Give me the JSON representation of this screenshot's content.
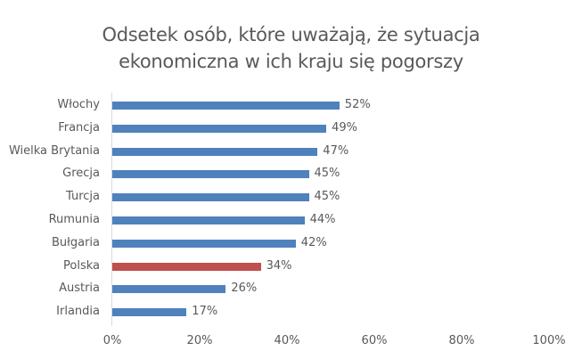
{
  "title_line1": "Odsetek osób, które uważają, że sytuacja",
  "title_line2": "ekonomiczna w ich kraju się pogorszy",
  "colors": {
    "default": "#4f81bd",
    "highlight": "#c0504d"
  },
  "chart_data": {
    "type": "bar",
    "orientation": "horizontal",
    "title": "Odsetek osób, które uważają, że sytuacja ekonomiczna w ich kraju się pogorszy",
    "xlabel": "",
    "ylabel": "",
    "categories": [
      "Włochy",
      "Francja",
      "Wielka Brytania",
      "Grecja",
      "Turcja",
      "Rumunia",
      "Bułgaria",
      "Polska",
      "Austria",
      "Irlandia"
    ],
    "values": [
      52,
      49,
      47,
      45,
      45,
      44,
      42,
      34,
      26,
      17
    ],
    "value_labels": [
      "52%",
      "49%",
      "47%",
      "45%",
      "45%",
      "44%",
      "42%",
      "34%",
      "26%",
      "17%"
    ],
    "highlight": "Polska",
    "xlim": [
      0,
      100
    ],
    "xticks": [
      "0%",
      "20%",
      "40%",
      "60%",
      "80%",
      "100%"
    ],
    "grid": false,
    "legend": null
  }
}
